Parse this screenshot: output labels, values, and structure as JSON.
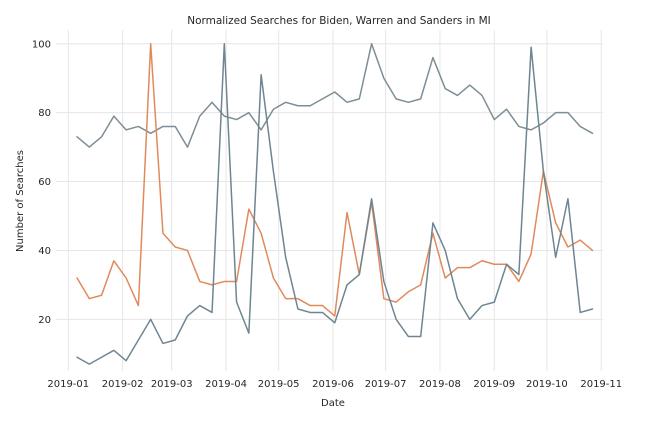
{
  "chart_data": {
    "type": "line",
    "title": "Normalized Searches for Biden, Warren and Sanders in MI",
    "xlabel": "Date",
    "ylabel": "Number of Searches",
    "xlim": [
      "2018-12-25",
      "2019-11-02"
    ],
    "ylim": [
      5,
      104
    ],
    "grid": true,
    "x_ticks": [
      {
        "label": "2019-01",
        "date": "2019-01-01"
      },
      {
        "label": "2019-02",
        "date": "2019-02-01"
      },
      {
        "label": "2019-03",
        "date": "2019-03-01"
      },
      {
        "label": "2019-04",
        "date": "2019-04-01"
      },
      {
        "label": "2019-05",
        "date": "2019-05-01"
      },
      {
        "label": "2019-06",
        "date": "2019-06-01"
      },
      {
        "label": "2019-07",
        "date": "2019-07-01"
      },
      {
        "label": "2019-08",
        "date": "2019-08-01"
      },
      {
        "label": "2019-09",
        "date": "2019-09-01"
      },
      {
        "label": "2019-10",
        "date": "2019-10-01"
      },
      {
        "label": "2019-11",
        "date": "2019-11-01"
      }
    ],
    "y_ticks": [
      20,
      40,
      60,
      80,
      100
    ],
    "x": [
      "2019-01-06",
      "2019-01-13",
      "2019-01-20",
      "2019-01-27",
      "2019-02-03",
      "2019-02-10",
      "2019-02-17",
      "2019-02-24",
      "2019-03-03",
      "2019-03-10",
      "2019-03-17",
      "2019-03-24",
      "2019-03-31",
      "2019-04-07",
      "2019-04-14",
      "2019-04-21",
      "2019-04-28",
      "2019-05-05",
      "2019-05-12",
      "2019-05-19",
      "2019-05-26",
      "2019-06-02",
      "2019-06-09",
      "2019-06-16",
      "2019-06-23",
      "2019-06-30",
      "2019-07-07",
      "2019-07-14",
      "2019-07-21",
      "2019-07-28",
      "2019-08-04",
      "2019-08-11",
      "2019-08-18",
      "2019-08-25",
      "2019-09-01",
      "2019-09-08",
      "2019-09-15",
      "2019-09-22",
      "2019-09-29",
      "2019-10-06",
      "2019-10-13",
      "2019-10-20",
      "2019-10-27"
    ],
    "series": [
      {
        "values": [
          73,
          70,
          73,
          79,
          75,
          76,
          74,
          76,
          76,
          70,
          79,
          83,
          79,
          78,
          80,
          75,
          81,
          83,
          82,
          82,
          84,
          86,
          83,
          84,
          100,
          90,
          84,
          83,
          84,
          96,
          87,
          85,
          88,
          85,
          78,
          81,
          76,
          75,
          77,
          80,
          80,
          76,
          74
        ],
        "color": "#7d8e96"
      },
      {
        "values": [
          32,
          26,
          27,
          37,
          32,
          24,
          100,
          45,
          41,
          40,
          31,
          30,
          31,
          31,
          52,
          45,
          32,
          26,
          26,
          24,
          24,
          21,
          51,
          33,
          54,
          26,
          25,
          28,
          30,
          45,
          32,
          35,
          35,
          37,
          36,
          36,
          31,
          39,
          63,
          48,
          41,
          43,
          40
        ],
        "color": "#e08a5c"
      },
      {
        "values": [
          9,
          7,
          9,
          11,
          8,
          14,
          20,
          13,
          14,
          21,
          24,
          22,
          100,
          25,
          16,
          91,
          63,
          38,
          23,
          22,
          22,
          19,
          30,
          33,
          55,
          31,
          20,
          15,
          15,
          48,
          40,
          26,
          20,
          24,
          25,
          36,
          33,
          99,
          63,
          38,
          55,
          22,
          23
        ],
        "color": "#6e8592"
      }
    ]
  }
}
